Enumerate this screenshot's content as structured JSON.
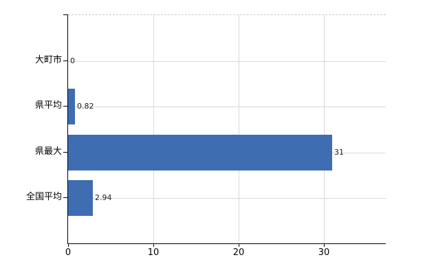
{
  "chart_data": {
    "type": "bar",
    "orientation": "horizontal",
    "title": "",
    "categories": [
      "大町市",
      "県平均",
      "県最大",
      "全国平均"
    ],
    "values": [
      0,
      0.82,
      31,
      2.94
    ],
    "value_labels": [
      "0",
      "0.82",
      "31",
      "2.94"
    ],
    "x_tick_labels": [
      "0",
      "10",
      "20",
      "30"
    ],
    "x_tick_values": [
      0,
      10,
      20,
      30
    ],
    "xlim": [
      0,
      37.25
    ],
    "grid": true,
    "legend": "none",
    "colors": {
      "bar": "#3e6db1",
      "h_gridline": "#d6dad3",
      "v_gridline": "#d9d9dc",
      "axis": "#000000",
      "plot_border_top": "#c9c9c9",
      "value_label": "#1a1a1a",
      "background": "#ffffff"
    }
  }
}
